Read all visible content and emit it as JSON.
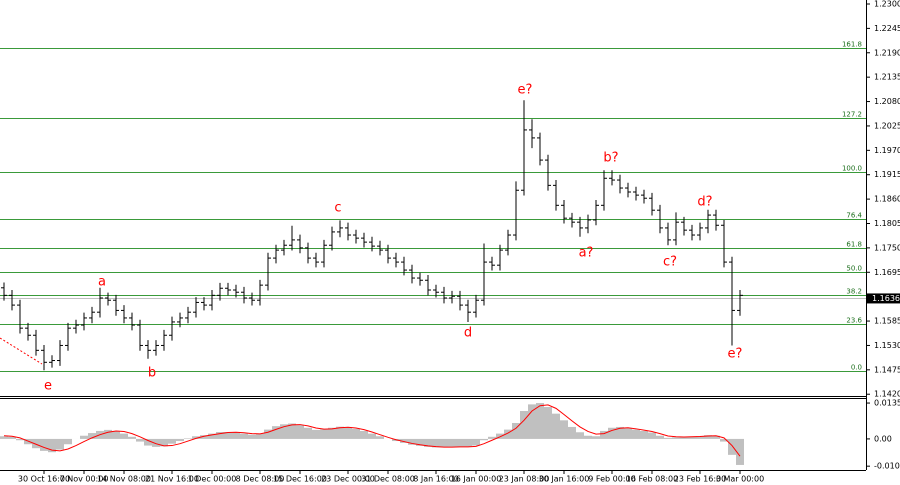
{
  "chart_data": [
    {
      "type": "ohlc",
      "categories": [
        null,
        null,
        null,
        null,
        null,
        "30 Oct 16:00",
        null,
        null,
        null,
        null,
        "7 Nov 00:00",
        null,
        null,
        null,
        null,
        "14 Nov 08:00",
        null,
        null,
        null,
        null,
        null,
        "21 Nov 16:00",
        null,
        null,
        null,
        null,
        "1 Dec 00:00",
        null,
        null,
        null,
        null,
        null,
        "8 Dec 08:00",
        null,
        null,
        null,
        null,
        "15 Dec 16:00",
        null,
        null,
        null,
        null,
        null,
        "23 Dec 00:00",
        null,
        null,
        null,
        null,
        "31 Dec 08:00",
        null,
        null,
        null,
        null,
        null,
        "8 Jan 16:00",
        null,
        null,
        null,
        null,
        "16 Jan 00:00",
        null,
        null,
        null,
        null,
        null,
        "23 Jan 08:00",
        null,
        null,
        null,
        null,
        "30 Jan 16:00",
        null,
        null,
        null,
        null,
        null,
        "9 Feb 00:00",
        null,
        null,
        null,
        null,
        "16 Feb 08:00",
        null,
        null,
        null,
        null,
        null,
        "23 Feb 16:00",
        null,
        null,
        null,
        null,
        "3 Mar 00:00"
      ],
      "open": [
        1.166,
        1.1643,
        1.1621,
        1.1569,
        1.1553,
        1.1519,
        1.1492,
        1.1496,
        1.153,
        1.1569,
        1.1576,
        1.1592,
        1.1605,
        1.1637,
        1.1632,
        1.1609,
        1.1592,
        1.1576,
        1.153,
        1.1519,
        1.153,
        1.1553,
        1.1583,
        1.1592,
        1.1605,
        1.1627,
        1.1621,
        1.1643,
        1.1659,
        1.1655,
        1.165,
        1.1637,
        1.1632,
        1.1666,
        1.1727,
        1.1745,
        1.1756,
        1.1768,
        1.175,
        1.1727,
        1.1718,
        1.1756,
        1.1786,
        1.1795,
        1.1779,
        1.1772,
        1.1763,
        1.1754,
        1.1745,
        1.1727,
        1.1718,
        1.17,
        1.1682,
        1.1677,
        1.1655,
        1.165,
        1.1637,
        1.1641,
        1.1621,
        1.1605,
        1.1632,
        1.1718,
        1.1711,
        1.1745,
        1.1779,
        1.188,
        1.2016,
        1.1998,
        1.1948,
        1.1891,
        1.1846,
        1.1817,
        1.1808,
        1.1795,
        1.1813,
        1.1846,
        1.1907,
        1.1903,
        1.1885,
        1.1876,
        1.1869,
        1.1862,
        1.1835,
        1.1795,
        1.1768,
        1.1808,
        1.179,
        1.1779,
        1.1795,
        1.1824,
        1.1801,
        1.1718,
        1.1609
      ],
      "high": [
        1.1672,
        1.1655,
        1.1633,
        1.1581,
        1.1565,
        1.1531,
        1.1508,
        1.1542,
        1.1581,
        1.1588,
        1.1604,
        1.1617,
        1.166,
        1.1649,
        1.1644,
        1.1621,
        1.1604,
        1.1588,
        1.1542,
        1.1542,
        1.1565,
        1.1595,
        1.1604,
        1.1617,
        1.1639,
        1.1639,
        1.1655,
        1.1671,
        1.1671,
        1.1667,
        1.1662,
        1.1649,
        1.1678,
        1.1739,
        1.1757,
        1.1768,
        1.18,
        1.178,
        1.1762,
        1.1739,
        1.1768,
        1.1798,
        1.1812,
        1.1807,
        1.1791,
        1.1784,
        1.1775,
        1.1766,
        1.1757,
        1.1739,
        1.173,
        1.1712,
        1.1694,
        1.1689,
        1.1667,
        1.1662,
        1.1653,
        1.1653,
        1.1633,
        1.1644,
        1.176,
        1.173,
        1.1757,
        1.1791,
        1.19,
        1.2083,
        1.204,
        1.201,
        1.196,
        1.1903,
        1.1858,
        1.1829,
        1.182,
        1.1825,
        1.1858,
        1.1925,
        1.1925,
        1.1915,
        1.1897,
        1.1888,
        1.1881,
        1.1874,
        1.1847,
        1.1807,
        1.183,
        1.182,
        1.1802,
        1.1807,
        1.1836,
        1.1836,
        1.1813,
        1.173,
        1.1655
      ],
      "low": [
        1.1631,
        1.1609,
        1.1557,
        1.1541,
        1.1507,
        1.1474,
        1.148,
        1.1484,
        1.1518,
        1.1557,
        1.1564,
        1.158,
        1.1593,
        1.162,
        1.1597,
        1.158,
        1.1564,
        1.1518,
        1.15,
        1.1507,
        1.1518,
        1.1541,
        1.1571,
        1.158,
        1.1593,
        1.1609,
        1.1609,
        1.1631,
        1.1643,
        1.1638,
        1.1625,
        1.162,
        1.162,
        1.1654,
        1.1715,
        1.1733,
        1.1744,
        1.1738,
        1.1715,
        1.1706,
        1.1706,
        1.1744,
        1.1774,
        1.1767,
        1.176,
        1.1751,
        1.1742,
        1.1733,
        1.1715,
        1.1706,
        1.1688,
        1.167,
        1.1665,
        1.1643,
        1.1638,
        1.1625,
        1.1625,
        1.1609,
        1.1583,
        1.1593,
        1.162,
        1.1699,
        1.1699,
        1.1733,
        1.1767,
        1.1868,
        1.1975,
        1.1936,
        1.1879,
        1.1834,
        1.1805,
        1.1796,
        1.1775,
        1.1783,
        1.1801,
        1.1834,
        1.1891,
        1.1873,
        1.1864,
        1.1857,
        1.185,
        1.1823,
        1.1783,
        1.1756,
        1.1756,
        1.1778,
        1.1767,
        1.1767,
        1.1783,
        1.1789,
        1.1706,
        1.153,
        1.1597
      ],
      "close": [
        1.1643,
        1.1621,
        1.1569,
        1.1553,
        1.1519,
        1.1492,
        1.1496,
        1.153,
        1.1569,
        1.1576,
        1.1592,
        1.1605,
        1.1637,
        1.1632,
        1.1609,
        1.1592,
        1.1576,
        1.153,
        1.1519,
        1.153,
        1.1553,
        1.1583,
        1.1592,
        1.1605,
        1.1627,
        1.1621,
        1.1643,
        1.1659,
        1.1655,
        1.165,
        1.1637,
        1.1632,
        1.1666,
        1.1727,
        1.1745,
        1.1756,
        1.1768,
        1.175,
        1.1727,
        1.1718,
        1.1756,
        1.1786,
        1.1795,
        1.1779,
        1.1772,
        1.1763,
        1.1754,
        1.1745,
        1.1727,
        1.1718,
        1.17,
        1.1682,
        1.1677,
        1.1655,
        1.165,
        1.1637,
        1.1641,
        1.1621,
        1.1605,
        1.1632,
        1.1718,
        1.1711,
        1.1745,
        1.1779,
        1.188,
        1.2016,
        1.1998,
        1.1948,
        1.1891,
        1.1846,
        1.1817,
        1.1808,
        1.1795,
        1.1813,
        1.1846,
        1.1907,
        1.1903,
        1.1885,
        1.1876,
        1.1869,
        1.1862,
        1.1835,
        1.1795,
        1.1768,
        1.1808,
        1.179,
        1.1779,
        1.1795,
        1.1824,
        1.1801,
        1.1718,
        1.1609,
        1.1643
      ],
      "color": "#000000",
      "ylim": [
        1.1416,
        1.2309
      ],
      "yticks": [
        {
          "value": 1.23,
          "label": "1.2300"
        },
        {
          "value": 1.2245,
          "label": "1.2245"
        },
        {
          "value": 1.219,
          "label": "1.2190"
        },
        {
          "value": 1.2135,
          "label": "1.2135"
        },
        {
          "value": 1.208,
          "label": "1.2080"
        },
        {
          "value": 1.2025,
          "label": "1.2025"
        },
        {
          "value": 1.197,
          "label": "1.1970"
        },
        {
          "value": 1.1915,
          "label": "1.1915"
        },
        {
          "value": 1.186,
          "label": "1.1860"
        },
        {
          "value": 1.1805,
          "label": "1.1805"
        },
        {
          "value": 1.175,
          "label": "1.1750"
        },
        {
          "value": 1.1695,
          "label": "1.1695"
        },
        {
          "value": 1.1585,
          "label": "1.1585"
        },
        {
          "value": 1.153,
          "label": "1.1530"
        },
        {
          "value": 1.1475,
          "label": "1.1475"
        },
        {
          "value": 1.142,
          "label": "1.1420"
        }
      ],
      "levels": [
        {
          "value": 1.2201,
          "label": "161.8"
        },
        {
          "value": 1.2043,
          "label": "127.2"
        },
        {
          "value": 1.1921,
          "label": "100.0"
        },
        {
          "value": 1.1815,
          "label": "76.4"
        },
        {
          "value": 1.1749,
          "label": "61.8"
        },
        {
          "value": 1.1695,
          "label": "50.0"
        },
        {
          "value": 1.1643,
          "label": "38.2"
        },
        {
          "value": 1.1578,
          "label": "23.6"
        },
        {
          "value": 1.1472,
          "label": "0.0"
        }
      ],
      "level_color": "#3a9a3a",
      "annotations": [
        "e",
        "a",
        "b",
        "c",
        "d",
        "e?",
        "a?",
        "b?",
        "c?",
        "d?",
        "e?"
      ],
      "annotation_color": "#ff0000",
      "last_price": 1.1636
    },
    {
      "type": "macd",
      "histogram": {
        "color": "#c0c0c0",
        "values": [
          0.001,
          0.0008,
          -0.0005,
          -0.002,
          -0.0035,
          -0.0045,
          -0.005,
          -0.004,
          -0.002,
          0.0,
          0.0012,
          0.0022,
          0.003,
          0.0034,
          0.003,
          0.002,
          0.0008,
          -0.001,
          -0.0025,
          -0.003,
          -0.0028,
          -0.0018,
          -0.0008,
          0.0002,
          0.001,
          0.0014,
          0.002,
          0.0026,
          0.0026,
          0.0024,
          0.002,
          0.0016,
          0.002,
          0.0035,
          0.0048,
          0.0055,
          0.0058,
          0.0052,
          0.0042,
          0.0034,
          0.0036,
          0.0042,
          0.0046,
          0.0044,
          0.0038,
          0.003,
          0.002,
          0.001,
          0.0,
          -0.0008,
          -0.0015,
          -0.0022,
          -0.0026,
          -0.003,
          -0.0032,
          -0.0032,
          -0.003,
          -0.003,
          -0.003,
          -0.0025,
          -0.0005,
          0.0008,
          0.002,
          0.0035,
          0.006,
          0.0105,
          0.013,
          0.0135,
          0.012,
          0.0095,
          0.007,
          0.0045,
          0.0025,
          0.0012,
          0.001,
          0.003,
          0.0042,
          0.0045,
          0.004,
          0.0035,
          0.003,
          0.0024,
          0.0012,
          0.0004,
          0.0006,
          0.0008,
          0.0008,
          0.001,
          0.0014,
          0.0012,
          -0.001,
          -0.006,
          -0.0098
        ]
      },
      "signal": {
        "color": "#ff0000",
        "values": [
          0.0012,
          0.001,
          0.0004,
          -0.0008,
          -0.002,
          -0.0032,
          -0.0042,
          -0.0045,
          -0.0038,
          -0.0025,
          -0.001,
          0.0004,
          0.0016,
          0.0025,
          0.003,
          0.0028,
          0.002,
          0.0008,
          -0.0006,
          -0.0018,
          -0.0026,
          -0.0025,
          -0.0018,
          -0.0008,
          0.0002,
          0.001,
          0.0015,
          0.002,
          0.0024,
          0.0025,
          0.0023,
          0.002,
          0.0019,
          0.0025,
          0.0036,
          0.0046,
          0.0053,
          0.0054,
          0.0049,
          0.0041,
          0.0037,
          0.0038,
          0.0042,
          0.0044,
          0.0041,
          0.0035,
          0.0026,
          0.0016,
          0.0006,
          -0.0003,
          -0.001,
          -0.0017,
          -0.0022,
          -0.0026,
          -0.0029,
          -0.0031,
          -0.0031,
          -0.003,
          -0.003,
          -0.0028,
          -0.0018,
          -0.0005,
          0.0008,
          0.0022,
          0.004,
          0.007,
          0.0105,
          0.0125,
          0.0128,
          0.0115,
          0.0092,
          0.0068,
          0.0045,
          0.0028,
          0.0018,
          0.002,
          0.0032,
          0.004,
          0.0042,
          0.0038,
          0.0033,
          0.0028,
          0.002,
          0.0011,
          0.0008,
          0.0007,
          0.0008,
          0.0009,
          0.0011,
          0.0012,
          0.0004,
          -0.0025,
          -0.0065
        ]
      },
      "ylim": [
        -0.0117,
        0.0154
      ],
      "yticks": [
        {
          "value": 0.0135,
          "label": "0.0135"
        },
        {
          "value": 0,
          "label": "0.00"
        },
        {
          "value": -0.01026,
          "label": "-0.01026"
        }
      ]
    }
  ]
}
